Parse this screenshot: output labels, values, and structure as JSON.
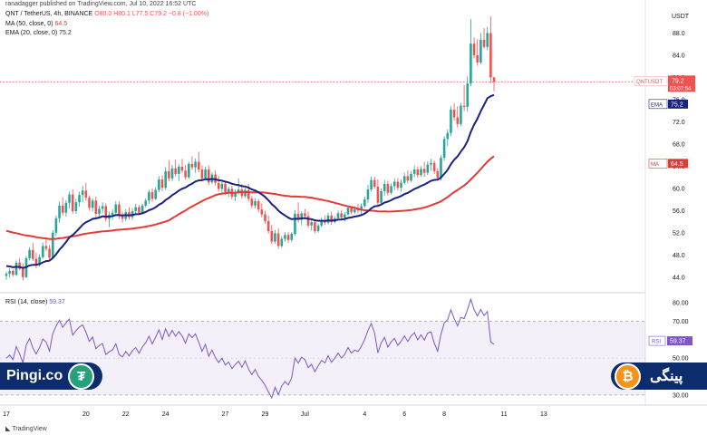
{
  "header": {
    "publisher": "ranadagger published on TradingView.com, Jul 10, 2022 16:52 UTC",
    "symbol": "QNT / TetherUS, 4h, BINANCE",
    "ohlc": "O80.0 H80.1 L77.5 C79.2 −0.8 (−1.00%)",
    "ma_label": "MA (50, close, 0)",
    "ma_value": "64.5",
    "ema_label": "EMA (20, close, 0)",
    "ema_value": "75.2"
  },
  "rsi_header": {
    "label": "RSI (14, close)",
    "value": "59.37"
  },
  "footer": {
    "tradingview": "TradingView"
  },
  "branding": {
    "left_text": "Pingi.co",
    "right_text": "پینگی",
    "tether_glyph": "₮",
    "bitcoin_glyph": "₿"
  },
  "colors": {
    "up": "#26a69a",
    "down": "#ef5350",
    "ma": "#e53935",
    "ema": "#1a237e",
    "rsi": "#7e57c2",
    "brand": "#0d2c6b"
  },
  "chart_data": [
    {
      "type": "candlestick",
      "title": "QNT / TetherUS, 4h, BINANCE",
      "price_unit": "USDT",
      "ylim": [
        42,
        92
      ],
      "y_ticks": [
        "44.0",
        "48.0",
        "52.0",
        "56.0",
        "60.0",
        "64.0",
        "68.0",
        "72.0",
        "76.0",
        "80.0",
        "84.0",
        "88.0"
      ],
      "x_tick_labels": [
        "17",
        "20",
        "22",
        "24",
        "27",
        "29",
        "Jul",
        "4",
        "6",
        "8",
        "11",
        "13"
      ],
      "x_tick_index": [
        0,
        24,
        36,
        48,
        66,
        78,
        90,
        108,
        120,
        132,
        150,
        162
      ],
      "ohlc": [
        [
          44.2,
          45.0,
          43.5,
          44.6
        ],
        [
          44.6,
          45.6,
          43.9,
          45.1
        ],
        [
          45.1,
          45.4,
          44.1,
          44.4
        ],
        [
          44.4,
          47.0,
          44.2,
          46.6
        ],
        [
          46.6,
          47.4,
          45.2,
          45.5
        ],
        [
          45.5,
          46.5,
          43.4,
          44.0
        ],
        [
          44.0,
          47.8,
          43.8,
          47.4
        ],
        [
          47.4,
          49.4,
          47.0,
          48.9
        ],
        [
          48.9,
          50.2,
          46.9,
          47.3
        ],
        [
          47.3,
          48.4,
          45.6,
          46.2
        ],
        [
          46.2,
          48.1,
          45.9,
          47.6
        ],
        [
          47.6,
          50.2,
          47.3,
          49.6
        ],
        [
          49.6,
          51.0,
          48.7,
          49.1
        ],
        [
          49.1,
          49.8,
          46.9,
          47.5
        ],
        [
          47.5,
          52.5,
          47.2,
          52.0
        ],
        [
          52.0,
          55.1,
          51.4,
          54.6
        ],
        [
          54.6,
          57.6,
          53.8,
          56.9
        ],
        [
          56.9,
          58.4,
          55.1,
          55.6
        ],
        [
          55.6,
          57.9,
          54.9,
          57.4
        ],
        [
          57.4,
          59.4,
          56.4,
          58.9
        ],
        [
          58.9,
          59.8,
          55.4,
          55.9
        ],
        [
          55.9,
          58.1,
          55.4,
          57.5
        ],
        [
          57.5,
          59.4,
          56.7,
          58.8
        ],
        [
          58.8,
          60.5,
          57.5,
          59.6
        ],
        [
          59.6,
          61.0,
          57.8,
          58.3
        ],
        [
          58.3,
          58.7,
          56.0,
          56.5
        ],
        [
          56.5,
          58.2,
          55.8,
          57.8
        ],
        [
          57.8,
          58.5,
          54.8,
          55.4
        ],
        [
          55.4,
          56.9,
          54.5,
          56.3
        ],
        [
          56.3,
          57.5,
          55.5,
          56.8
        ],
        [
          56.8,
          57.3,
          54.0,
          54.5
        ],
        [
          54.5,
          55.8,
          53.0,
          55.2
        ],
        [
          55.2,
          56.2,
          54.3,
          55.6
        ],
        [
          55.6,
          57.7,
          55.1,
          57.1
        ],
        [
          57.1,
          57.7,
          54.5,
          55.0
        ],
        [
          55.0,
          55.8,
          53.8,
          54.5
        ],
        [
          54.5,
          56.2,
          54.1,
          55.7
        ],
        [
          55.7,
          56.6,
          54.3,
          54.8
        ],
        [
          54.8,
          56.4,
          54.3,
          55.9
        ],
        [
          55.9,
          57.2,
          55.4,
          56.6
        ],
        [
          56.6,
          57.0,
          55.2,
          55.6
        ],
        [
          55.6,
          57.2,
          55.3,
          56.9
        ],
        [
          56.9,
          58.2,
          56.6,
          57.8
        ],
        [
          57.8,
          59.7,
          57.2,
          59.3
        ],
        [
          59.3,
          60.0,
          57.6,
          58.1
        ],
        [
          58.1,
          60.2,
          57.9,
          59.7
        ],
        [
          59.7,
          62.2,
          59.3,
          61.6
        ],
        [
          61.6,
          62.4,
          59.5,
          60.1
        ],
        [
          60.1,
          63.8,
          59.7,
          63.1
        ],
        [
          63.1,
          65.1,
          61.3,
          61.8
        ],
        [
          61.8,
          64.2,
          61.3,
          63.6
        ],
        [
          63.6,
          65.2,
          62.1,
          62.6
        ],
        [
          62.6,
          64.4,
          61.3,
          63.9
        ],
        [
          63.9,
          65.3,
          62.8,
          63.2
        ],
        [
          63.2,
          64.2,
          61.6,
          62.0
        ],
        [
          62.0,
          64.8,
          61.7,
          64.4
        ],
        [
          64.4,
          65.8,
          63.3,
          63.8
        ],
        [
          63.8,
          65.4,
          62.8,
          64.8
        ],
        [
          64.8,
          66.6,
          62.9,
          63.4
        ],
        [
          63.4,
          64.1,
          61.3,
          61.8
        ],
        [
          61.8,
          63.9,
          61.5,
          63.4
        ],
        [
          63.4,
          64.1,
          60.6,
          61.1
        ],
        [
          61.1,
          62.9,
          60.8,
          62.5
        ],
        [
          62.5,
          63.2,
          60.5,
          61.0
        ],
        [
          61.0,
          62.2,
          59.4,
          59.9
        ],
        [
          59.9,
          61.3,
          59.1,
          60.8
        ],
        [
          60.8,
          61.3,
          58.8,
          59.3
        ],
        [
          59.3,
          60.3,
          58.4,
          59.9
        ],
        [
          59.9,
          60.5,
          58.0,
          58.5
        ],
        [
          58.5,
          59.8,
          57.7,
          59.2
        ],
        [
          59.2,
          61.8,
          58.9,
          59.8
        ],
        [
          59.8,
          60.8,
          58.1,
          58.6
        ],
        [
          58.6,
          60.1,
          58.3,
          59.7
        ],
        [
          59.7,
          60.8,
          57.6,
          58.1
        ],
        [
          58.1,
          58.6,
          56.4,
          56.9
        ],
        [
          56.9,
          58.2,
          56.4,
          57.7
        ],
        [
          57.7,
          58.1,
          55.7,
          56.2
        ],
        [
          56.2,
          57.3,
          54.8,
          55.3
        ],
        [
          55.3,
          56.0,
          53.6,
          54.1
        ],
        [
          54.1,
          55.1,
          51.8,
          52.3
        ],
        [
          52.3,
          53.4,
          49.9,
          50.4
        ],
        [
          50.4,
          52.5,
          50.0,
          51.9
        ],
        [
          51.9,
          52.8,
          49.1,
          49.6
        ],
        [
          49.6,
          51.4,
          49.3,
          50.9
        ],
        [
          50.9,
          52.1,
          50.4,
          51.6
        ],
        [
          51.6,
          52.2,
          50.2,
          50.7
        ],
        [
          50.7,
          52.1,
          50.3,
          51.8
        ],
        [
          51.8,
          56.1,
          51.5,
          55.4
        ],
        [
          55.4,
          57.5,
          53.8,
          54.3
        ],
        [
          54.3,
          55.9,
          53.3,
          55.5
        ],
        [
          55.5,
          56.3,
          54.5,
          55.0
        ],
        [
          55.0,
          55.8,
          52.9,
          53.3
        ],
        [
          53.3,
          54.4,
          52.4,
          53.9
        ],
        [
          53.9,
          54.4,
          51.9,
          52.3
        ],
        [
          52.3,
          53.7,
          52.0,
          53.3
        ],
        [
          53.3,
          54.8,
          53.0,
          54.3
        ],
        [
          54.3,
          55.1,
          53.4,
          53.8
        ],
        [
          53.8,
          55.6,
          53.5,
          55.1
        ],
        [
          55.1,
          55.8,
          53.4,
          53.9
        ],
        [
          53.9,
          55.0,
          53.7,
          54.6
        ],
        [
          54.6,
          56.0,
          54.2,
          55.5
        ],
        [
          55.5,
          56.0,
          54.2,
          54.7
        ],
        [
          54.7,
          55.7,
          54.0,
          55.3
        ],
        [
          55.3,
          56.9,
          55.1,
          56.5
        ],
        [
          56.5,
          56.8,
          55.3,
          55.7
        ],
        [
          55.7,
          56.8,
          55.4,
          56.2
        ],
        [
          56.2,
          57.2,
          55.5,
          56.0
        ],
        [
          56.0,
          57.3,
          55.3,
          56.8
        ],
        [
          56.8,
          58.5,
          56.5,
          58.0
        ],
        [
          58.0,
          60.6,
          57.4,
          59.8
        ],
        [
          59.8,
          62.1,
          59.4,
          61.5
        ],
        [
          61.5,
          62.1,
          59.9,
          60.3
        ],
        [
          60.3,
          61.6,
          56.8,
          57.4
        ],
        [
          57.4,
          60.0,
          57.1,
          59.5
        ],
        [
          59.5,
          61.5,
          58.7,
          60.8
        ],
        [
          60.8,
          61.3,
          58.7,
          59.2
        ],
        [
          59.2,
          60.9,
          58.9,
          60.4
        ],
        [
          60.4,
          61.8,
          59.7,
          61.2
        ],
        [
          61.2,
          61.9,
          59.6,
          60.1
        ],
        [
          60.1,
          61.6,
          59.4,
          61.0
        ],
        [
          61.0,
          62.8,
          60.7,
          62.2
        ],
        [
          62.2,
          63.2,
          60.9,
          61.4
        ],
        [
          61.4,
          63.1,
          61.1,
          62.6
        ],
        [
          62.6,
          64.1,
          62.0,
          63.4
        ],
        [
          63.4,
          63.9,
          61.9,
          62.4
        ],
        [
          62.4,
          64.0,
          62.1,
          63.5
        ],
        [
          63.5,
          64.8,
          62.1,
          62.8
        ],
        [
          62.8,
          64.9,
          62.4,
          64.3
        ],
        [
          64.3,
          65.3,
          63.2,
          64.6
        ],
        [
          64.6,
          65.0,
          62.6,
          63.1
        ],
        [
          63.1,
          63.6,
          61.4,
          61.9
        ],
        [
          61.9,
          66.0,
          61.4,
          65.5
        ],
        [
          65.5,
          69.4,
          65.0,
          68.9
        ],
        [
          68.9,
          70.6,
          67.6,
          70.0
        ],
        [
          70.0,
          74.8,
          69.4,
          74.2
        ],
        [
          74.2,
          75.4,
          72.2,
          72.8
        ],
        [
          72.8,
          74.8,
          71.0,
          71.6
        ],
        [
          71.6,
          75.4,
          71.2,
          74.9
        ],
        [
          74.9,
          78.6,
          73.9,
          74.7
        ],
        [
          74.7,
          80.2,
          73.8,
          78.9
        ],
        [
          78.9,
          90.5,
          78.4,
          86.1
        ],
        [
          86.1,
          87.2,
          83.4,
          84.0
        ],
        [
          84.0,
          86.9,
          82.1,
          82.7
        ],
        [
          82.7,
          88.0,
          82.4,
          86.8
        ],
        [
          86.8,
          88.9,
          85.2,
          85.5
        ],
        [
          85.5,
          89.1,
          84.9,
          88.0
        ],
        [
          88.0,
          91.0,
          79.0,
          80.0
        ],
        [
          80.0,
          80.1,
          77.5,
          79.2
        ]
      ],
      "ma": {
        "name": "MA (50, close, 0)",
        "last": 64.5
      },
      "ema": {
        "name": "EMA (20, close, 0)",
        "last": 75.2
      },
      "price_tags": [
        {
          "label": "QNTUSDT",
          "value": "79.2",
          "timer": "03:07:54",
          "y": 79.2
        },
        {
          "label": "EMA",
          "value": "75.2",
          "y": 75.2
        },
        {
          "label": "MA",
          "value": "64.5",
          "y": 64.5
        }
      ]
    },
    {
      "type": "line",
      "title": "RSI (14, close)",
      "ylim": [
        26,
        84
      ],
      "y_ticks": [
        "30.00",
        "50.00",
        "70.00",
        "80.00"
      ],
      "band": [
        30,
        70
      ],
      "last": 59.37,
      "tag": {
        "label": "RSI",
        "value": "59.37"
      }
    }
  ]
}
